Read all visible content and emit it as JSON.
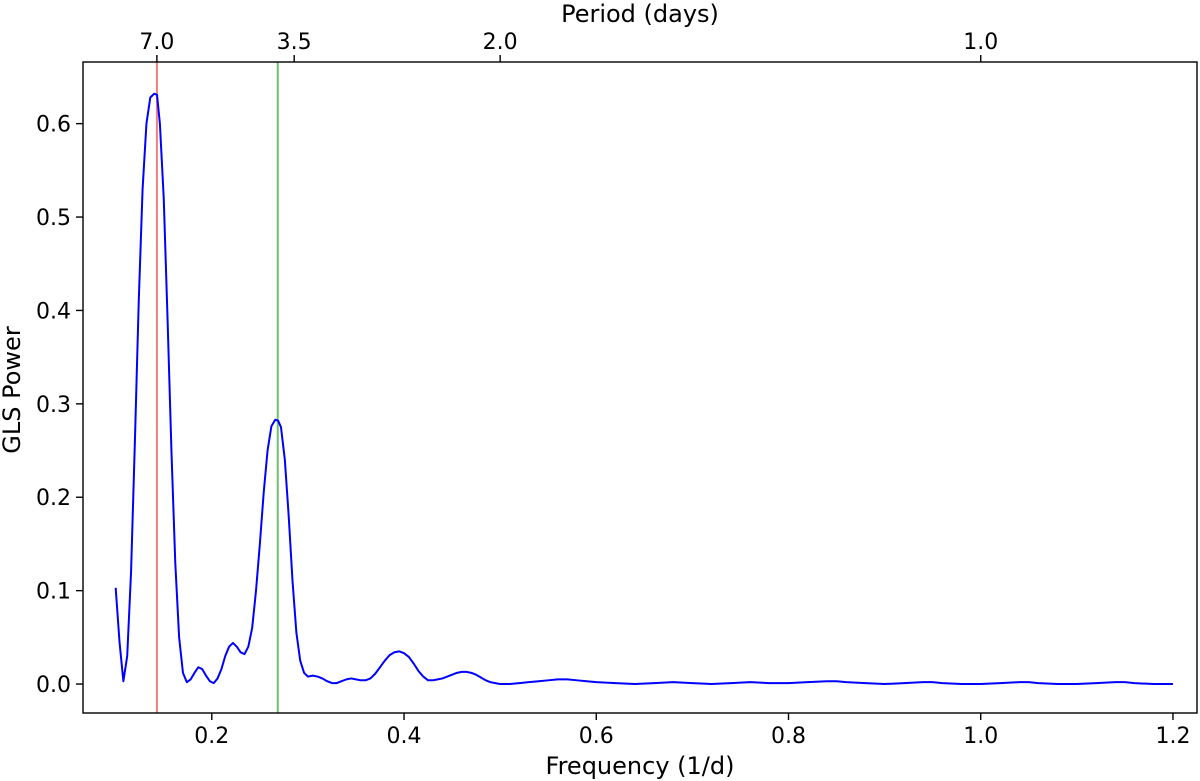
{
  "chart_data": {
    "type": "line",
    "xlabel": "Frequency (1/d)",
    "ylabel": "GLS Power",
    "top_xlabel": "Period (days)",
    "xlim": [
      0.066,
      1.225
    ],
    "ylim": [
      -0.031,
      0.666
    ],
    "x_ticks": [
      0.2,
      0.4,
      0.6,
      0.8,
      1.0,
      1.2
    ],
    "x_tick_labels": [
      "0.2",
      "0.4",
      "0.6",
      "0.8",
      "1.0",
      "1.2"
    ],
    "y_ticks": [
      0.0,
      0.1,
      0.2,
      0.3,
      0.4,
      0.5,
      0.6
    ],
    "y_tick_labels": [
      "0.0",
      "0.1",
      "0.2",
      "0.3",
      "0.4",
      "0.5",
      "0.6"
    ],
    "top_ticks": [
      {
        "period": 7.0,
        "label": "7.0"
      },
      {
        "period": 3.5,
        "label": "3.5"
      },
      {
        "period": 2.0,
        "label": "2.0"
      },
      {
        "period": 1.0,
        "label": "1.0"
      }
    ],
    "vlines": [
      {
        "x": 0.1429,
        "color": "#f08080"
      },
      {
        "x": 0.2686,
        "color": "#6cbf6c"
      }
    ],
    "series_color": "#0000ff",
    "series": [
      {
        "x": [
          0.1,
          0.104,
          0.108,
          0.112,
          0.116,
          0.12,
          0.124,
          0.128,
          0.132,
          0.136,
          0.14,
          0.143,
          0.146,
          0.15,
          0.154,
          0.158,
          0.162,
          0.166,
          0.17,
          0.174,
          0.178,
          0.182,
          0.186,
          0.19,
          0.194,
          0.198,
          0.202,
          0.206,
          0.21,
          0.214,
          0.218,
          0.222,
          0.226,
          0.23,
          0.234,
          0.238,
          0.242,
          0.246,
          0.25,
          0.254,
          0.258,
          0.262,
          0.266,
          0.269,
          0.272,
          0.276,
          0.28,
          0.284,
          0.288,
          0.292,
          0.296,
          0.3,
          0.305,
          0.31,
          0.315,
          0.32,
          0.325,
          0.33,
          0.335,
          0.34,
          0.345,
          0.35,
          0.355,
          0.36,
          0.365,
          0.37,
          0.375,
          0.38,
          0.385,
          0.39,
          0.395,
          0.4,
          0.405,
          0.41,
          0.415,
          0.42,
          0.425,
          0.43,
          0.435,
          0.44,
          0.445,
          0.45,
          0.455,
          0.46,
          0.465,
          0.47,
          0.475,
          0.48,
          0.485,
          0.49,
          0.495,
          0.5,
          0.51,
          0.52,
          0.53,
          0.54,
          0.55,
          0.56,
          0.57,
          0.58,
          0.59,
          0.6,
          0.62,
          0.64,
          0.66,
          0.68,
          0.7,
          0.72,
          0.74,
          0.76,
          0.78,
          0.8,
          0.82,
          0.84,
          0.85,
          0.86,
          0.88,
          0.9,
          0.92,
          0.94,
          0.95,
          0.96,
          0.98,
          1.0,
          1.02,
          1.04,
          1.05,
          1.06,
          1.08,
          1.1,
          1.12,
          1.14,
          1.15,
          1.16,
          1.18,
          1.2
        ],
        "y": [
          0.103,
          0.045,
          0.003,
          0.03,
          0.12,
          0.26,
          0.41,
          0.53,
          0.6,
          0.628,
          0.632,
          0.631,
          0.6,
          0.52,
          0.39,
          0.25,
          0.13,
          0.05,
          0.012,
          0.002,
          0.005,
          0.012,
          0.018,
          0.016,
          0.009,
          0.003,
          0.001,
          0.006,
          0.016,
          0.03,
          0.04,
          0.044,
          0.04,
          0.034,
          0.032,
          0.04,
          0.06,
          0.1,
          0.15,
          0.205,
          0.25,
          0.276,
          0.283,
          0.282,
          0.275,
          0.24,
          0.18,
          0.11,
          0.055,
          0.025,
          0.012,
          0.008,
          0.009,
          0.008,
          0.006,
          0.003,
          0.001,
          0.001,
          0.003,
          0.005,
          0.006,
          0.005,
          0.004,
          0.004,
          0.006,
          0.011,
          0.018,
          0.025,
          0.031,
          0.034,
          0.035,
          0.033,
          0.029,
          0.022,
          0.014,
          0.008,
          0.004,
          0.004,
          0.005,
          0.006,
          0.008,
          0.01,
          0.012,
          0.013,
          0.013,
          0.012,
          0.01,
          0.007,
          0.004,
          0.002,
          0.001,
          0.0,
          0.0,
          0.001,
          0.002,
          0.003,
          0.004,
          0.005,
          0.005,
          0.004,
          0.003,
          0.002,
          0.001,
          0.0,
          0.001,
          0.002,
          0.001,
          0.0,
          0.001,
          0.002,
          0.001,
          0.001,
          0.002,
          0.003,
          0.003,
          0.002,
          0.001,
          0.0,
          0.001,
          0.002,
          0.002,
          0.001,
          0.0,
          0.0,
          0.001,
          0.002,
          0.002,
          0.001,
          0.0,
          0.0,
          0.001,
          0.002,
          0.002,
          0.001,
          0.0,
          0.0
        ]
      }
    ]
  }
}
